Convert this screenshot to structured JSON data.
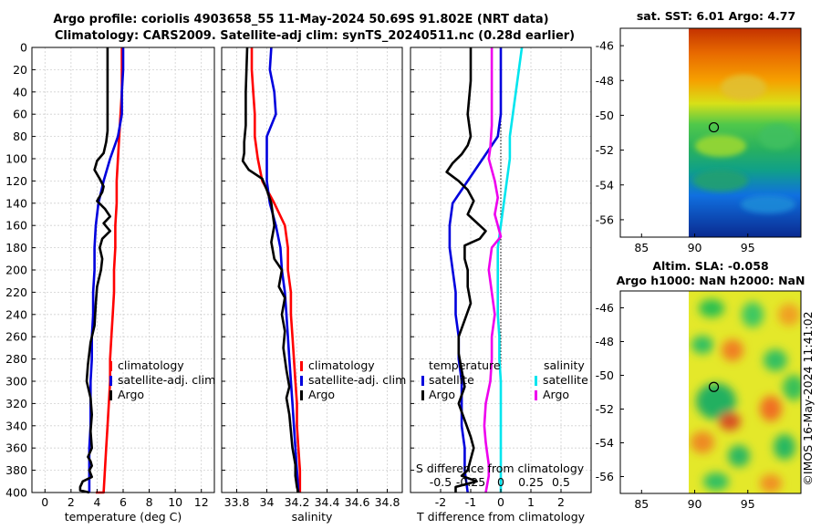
{
  "title": {
    "line1": "Argo profile: coriolis 4903658_55 11-May-2024 50.69S 91.802E (NRT data)",
    "line2": "Climatology: CARS2009. Satellite-adj clim: synTS_20240511.nc (0.28d earlier)"
  },
  "copyright": "©IMOS 16-May-2024 11:41:02",
  "colors": {
    "climatology": "#ff0000",
    "satellite": "#0000dd",
    "argo": "#000000",
    "sat_salinity": "#00e5ee",
    "argo_salinity": "#ee00ee"
  },
  "depth_axis": {
    "ylim": [
      400,
      0
    ],
    "ticks": [
      0,
      20,
      40,
      60,
      80,
      100,
      120,
      140,
      160,
      180,
      200,
      220,
      240,
      260,
      280,
      300,
      320,
      340,
      360,
      380,
      400
    ]
  },
  "chart_data": [
    {
      "id": "temperature",
      "type": "line",
      "xlabel": "temperature (deg C)",
      "xlim": [
        -1,
        13
      ],
      "xticks": [
        0,
        2,
        4,
        6,
        8,
        10,
        12
      ],
      "legend": [
        "climatology",
        "satellite-adj. clim",
        "Argo"
      ],
      "series": [
        {
          "name": "climatology",
          "color": "red",
          "x": [
            5.9,
            5.9,
            5.9,
            5.8,
            5.7,
            5.6,
            5.5,
            5.5,
            5.4,
            5.4,
            5.3,
            5.3,
            5.2,
            5.1,
            5.0,
            5.0,
            4.9,
            4.8,
            4.7,
            4.6,
            4.5,
            4.5,
            4.4,
            4.3,
            4.2,
            4.2,
            4.1,
            4.0,
            4.0,
            3.9,
            3.9
          ],
          "y": [
            0,
            20,
            40,
            60,
            80,
            100,
            120,
            140,
            160,
            180,
            200,
            220,
            240,
            260,
            280,
            300,
            320,
            340,
            360,
            380,
            400,
            400,
            400,
            400,
            400,
            400,
            400,
            400,
            400,
            400,
            400
          ]
        },
        {
          "name": "satellite-adj. clim",
          "color": "blue",
          "x": [
            6.0,
            6.0,
            5.9,
            5.9,
            5.6,
            5.0,
            4.5,
            4.1,
            3.9,
            3.8,
            3.8,
            3.7,
            3.7,
            3.6,
            3.6,
            3.5,
            3.5,
            3.5,
            3.4,
            3.4,
            3.4
          ],
          "y": [
            0,
            20,
            40,
            60,
            80,
            100,
            120,
            140,
            160,
            180,
            200,
            220,
            240,
            260,
            280,
            300,
            320,
            340,
            360,
            380,
            400
          ]
        },
        {
          "name": "Argo",
          "color": "black",
          "x": [
            4.8,
            4.8,
            4.8,
            4.8,
            4.7,
            4.5,
            4.0,
            3.8,
            4.2,
            4.5,
            4.4,
            4.0,
            4.6,
            5.0,
            4.5,
            5.0,
            4.4,
            4.2,
            4.4,
            4.3,
            4.0,
            3.9,
            3.8,
            3.5,
            3.3,
            3.2,
            3.5,
            3.6,
            3.5,
            3.6,
            3.3,
            3.5,
            3.6,
            3.4,
            3.5,
            3.6,
            2.9,
            2.7,
            2.7,
            3.4
          ],
          "y": [
            0,
            30,
            60,
            75,
            85,
            95,
            102,
            110,
            118,
            125,
            130,
            138,
            145,
            152,
            158,
            165,
            172,
            180,
            190,
            200,
            215,
            230,
            250,
            265,
            285,
            300,
            315,
            330,
            345,
            360,
            368,
            372,
            376,
            380,
            383,
            386,
            390,
            395,
            398,
            400
          ]
        }
      ]
    },
    {
      "id": "salinity",
      "type": "line",
      "xlabel": "salinity",
      "xlim": [
        33.7,
        34.9
      ],
      "xticks": [
        33.8,
        34,
        34.2,
        34.4,
        34.6,
        34.8
      ],
      "legend": [
        "climatology",
        "satellite-adj. clim",
        "Argo"
      ],
      "series": [
        {
          "name": "climatology",
          "color": "red",
          "x": [
            33.9,
            33.9,
            33.91,
            33.92,
            33.92,
            33.94,
            33.97,
            34.05,
            34.12,
            34.14,
            34.14,
            34.16,
            34.16,
            34.17,
            34.18,
            34.19,
            34.2,
            34.2,
            34.21,
            34.22,
            34.22
          ],
          "y": [
            0,
            20,
            40,
            60,
            80,
            100,
            120,
            140,
            160,
            180,
            200,
            220,
            240,
            260,
            280,
            300,
            320,
            340,
            360,
            380,
            400
          ]
        },
        {
          "name": "satellite-adj. clim",
          "color": "blue",
          "x": [
            34.03,
            34.02,
            34.05,
            34.06,
            34.0,
            34.0,
            34.0,
            34.02,
            34.06,
            34.09,
            34.1,
            34.12,
            34.13,
            34.14,
            34.15,
            34.16,
            34.17,
            34.18,
            34.19,
            34.2,
            34.21
          ],
          "y": [
            0,
            20,
            40,
            60,
            80,
            100,
            120,
            140,
            160,
            180,
            200,
            220,
            240,
            260,
            280,
            300,
            320,
            340,
            360,
            380,
            400
          ]
        },
        {
          "name": "Argo",
          "color": "black",
          "x": [
            33.87,
            33.86,
            33.86,
            33.85,
            33.85,
            33.84,
            33.88,
            33.97,
            34.0,
            34.03,
            34.05,
            34.03,
            34.05,
            34.1,
            34.08,
            34.12,
            34.1,
            34.12,
            34.11,
            34.13,
            34.15,
            34.13,
            34.15,
            34.16,
            34.17,
            34.19,
            34.19,
            34.2,
            34.21
          ],
          "y": [
            0,
            40,
            70,
            85,
            95,
            102,
            110,
            118,
            128,
            140,
            160,
            175,
            190,
            200,
            215,
            225,
            240,
            255,
            270,
            290,
            305,
            315,
            330,
            345,
            360,
            375,
            385,
            395,
            400
          ]
        }
      ]
    },
    {
      "id": "difference",
      "type": "line",
      "xlabel": "T difference from climatology",
      "xlabel_top": "S difference from climatology",
      "xlim": [
        -3,
        3
      ],
      "xticks": [
        -2,
        -1,
        0,
        1,
        2
      ],
      "xticks_top": [
        "-0.5",
        "-0.25",
        "0",
        "0.25",
        "0.5"
      ],
      "legend_groups": {
        "temperature": [
          "satellite",
          "Argo"
        ],
        "salinity": [
          "satellite",
          "Argo"
        ]
      },
      "series": [
        {
          "name": "temperature satellite",
          "color": "blue",
          "x": [
            0.0,
            0.0,
            0.0,
            0.0,
            -0.1,
            -0.6,
            -1.1,
            -1.6,
            -1.7,
            -1.7,
            -1.6,
            -1.5,
            -1.5,
            -1.4,
            -1.4,
            -1.3,
            -1.3,
            -1.3,
            -1.2,
            -1.2,
            -1.1
          ],
          "y": [
            0,
            20,
            40,
            60,
            80,
            100,
            120,
            140,
            160,
            180,
            200,
            220,
            240,
            260,
            280,
            300,
            320,
            340,
            360,
            380,
            400
          ]
        },
        {
          "name": "temperature Argo",
          "color": "black",
          "x": [
            -1.0,
            -1.0,
            -1.1,
            -1.0,
            -1.1,
            -1.3,
            -1.6,
            -1.8,
            -1.4,
            -1.1,
            -0.9,
            -1.1,
            -0.5,
            -0.7,
            -1.2,
            -1.2,
            -1.1,
            -1.1,
            -1.0,
            -1.2,
            -1.4,
            -1.4,
            -1.3,
            -1.2,
            -1.4,
            -1.2,
            -1.0,
            -0.9,
            -1.0,
            -1.1,
            -1.3,
            -0.8,
            -1.5,
            -1.5
          ],
          "y": [
            0,
            30,
            60,
            80,
            88,
            96,
            104,
            112,
            120,
            128,
            138,
            150,
            165,
            172,
            178,
            190,
            200,
            215,
            230,
            245,
            260,
            275,
            290,
            305,
            320,
            335,
            350,
            360,
            370,
            380,
            385,
            390,
            395,
            400
          ]
        },
        {
          "name": "salinity satellite",
          "color": "cyan",
          "x": [
            0.7,
            0.6,
            0.5,
            0.4,
            0.3,
            0.3,
            0.2,
            0.1,
            0.0,
            -0.1,
            -0.1,
            -0.1,
            -0.1,
            -0.05,
            -0.05,
            0.0,
            0.0,
            0.0,
            0.0,
            0.0,
            0.0
          ],
          "y": [
            0,
            20,
            40,
            60,
            80,
            100,
            120,
            140,
            160,
            180,
            200,
            220,
            240,
            260,
            280,
            300,
            320,
            340,
            360,
            380,
            400
          ]
        },
        {
          "name": "salinity Argo",
          "color": "magenta",
          "x": [
            -0.3,
            -0.3,
            -0.3,
            -0.35,
            -0.4,
            -0.3,
            -0.2,
            -0.1,
            -0.2,
            0.0,
            -0.3,
            -0.4,
            -0.3,
            -0.2,
            -0.3,
            -0.3,
            -0.35,
            -0.5,
            -0.55,
            -0.5,
            -0.45,
            -0.4,
            -0.4,
            -0.5
          ],
          "y": [
            0,
            40,
            70,
            90,
            100,
            110,
            120,
            135,
            150,
            170,
            180,
            200,
            220,
            240,
            260,
            280,
            300,
            320,
            340,
            355,
            365,
            375,
            385,
            400
          ]
        }
      ]
    },
    {
      "id": "sat-sst-map",
      "type": "heatmap",
      "title": "sat. SST: 6.01 Argo: 4.77",
      "xlim": [
        83,
        100
      ],
      "ylim": [
        -57,
        -45
      ],
      "xticks": [
        85,
        90,
        95
      ],
      "yticks": [
        -46,
        -48,
        -50,
        -52,
        -54,
        -56
      ],
      "data_lon_range": [
        90,
        100
      ],
      "marker": {
        "lon": 91.802,
        "lat": -50.69
      },
      "colormap": "jet"
    },
    {
      "id": "sla-map",
      "type": "heatmap",
      "title_line1": "Altim. SLA: -0.058",
      "title_line2": "Argo h1000: NaN h2000: NaN",
      "xlim": [
        83,
        100
      ],
      "ylim": [
        -57,
        -45
      ],
      "xticks": [
        85,
        90,
        95
      ],
      "yticks": [
        -46,
        -48,
        -50,
        -52,
        -54,
        -56
      ],
      "data_lon_range": [
        90,
        100
      ],
      "marker": {
        "lon": 91.802,
        "lat": -50.69
      },
      "colormap": "jet"
    }
  ]
}
